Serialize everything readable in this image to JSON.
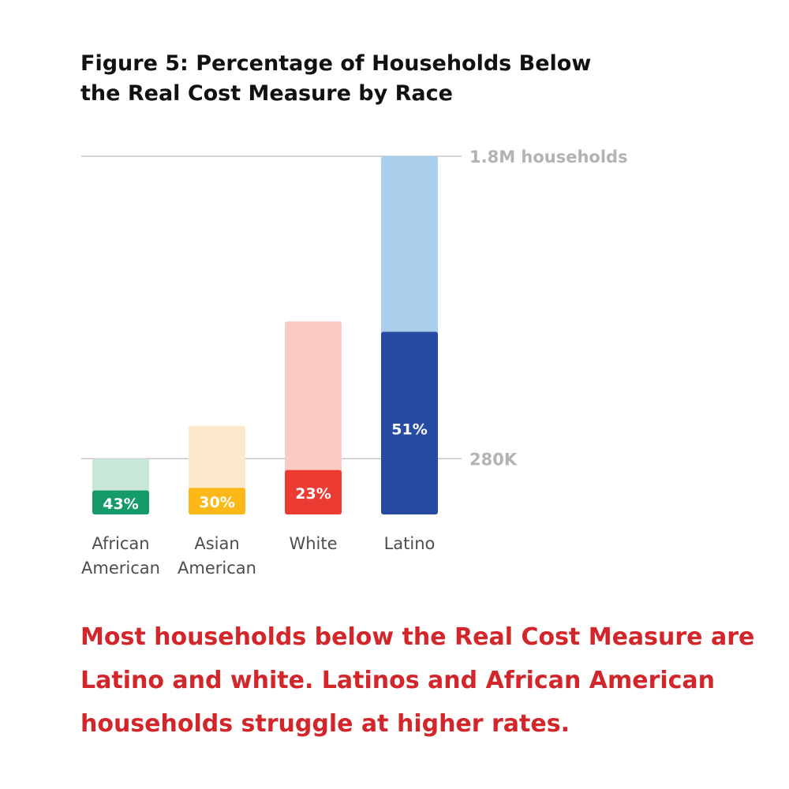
{
  "title_lines": [
    "Figure 5: Percentage of Households Below",
    "the Real Cost Measure by Race"
  ],
  "caption_lines": [
    "Most households below the Real Cost Measure are",
    "Latino and white. Latinos and African American",
    "households struggle at higher rates."
  ],
  "chart_data": {
    "type": "bar",
    "categories": [
      [
        "African",
        "American"
      ],
      [
        "Asian",
        "American"
      ],
      [
        "White"
      ],
      [
        "Latino"
      ]
    ],
    "series": [
      {
        "values": [
          280000,
          445000,
          970000,
          1800000
        ],
        "colors": [
          "#c9e7d8",
          "#fde8cc",
          "#fbcbc1",
          "#a9cfec"
        ]
      },
      {
        "values": [
          120400,
          133500,
          223100,
          918000
        ],
        "colors": [
          "#159a6a",
          "#fbb817",
          "#eb3b32",
          "#274ba1"
        ]
      }
    ],
    "data_labels": [
      "43%",
      "30%",
      "23%",
      "51%"
    ],
    "reference_lines": [
      {
        "value": 1800000,
        "label": "1.8M households"
      },
      {
        "value": 280000,
        "label": "280K"
      }
    ],
    "ylim": [
      0,
      1800000
    ],
    "colors": {
      "reference_line": "#bdbdbd",
      "reference_label": "#b3b3b3",
      "category_label": "#4d4d4d",
      "data_label": "#ffffff"
    }
  }
}
